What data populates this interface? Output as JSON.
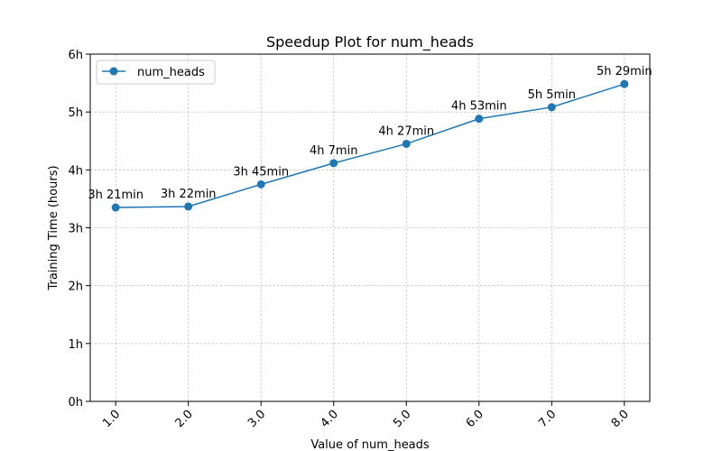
{
  "chart_data": {
    "type": "line",
    "title": "Speedup Plot for num_heads",
    "xlabel": "Value of num_heads",
    "ylabel": "Training Time (hours)",
    "x": [
      1.0,
      2.0,
      3.0,
      4.0,
      5.0,
      6.0,
      7.0,
      8.0
    ],
    "x_tick_labels": [
      "1.0",
      "2.0",
      "3.0",
      "4.0",
      "5.0",
      "6.0",
      "7.0",
      "8.0"
    ],
    "y_ticks": [
      0,
      1,
      2,
      3,
      4,
      5,
      6
    ],
    "y_tick_labels": [
      "0h",
      "1h",
      "2h",
      "3h",
      "4h",
      "5h",
      "6h"
    ],
    "ylim": [
      0,
      6
    ],
    "xlim": [
      0.65,
      8.35
    ],
    "grid": true,
    "legend": {
      "placement": "top-left",
      "entries": [
        "num_heads"
      ]
    },
    "series": [
      {
        "name": "num_heads",
        "color": "#1f77b4",
        "marker": "circle",
        "values": [
          3.35,
          3.3667,
          3.75,
          4.1167,
          4.45,
          4.8833,
          5.0833,
          5.4833
        ],
        "labels": [
          "3h 21min",
          "3h 22min",
          "3h 45min",
          "4h 7min",
          "4h 27min",
          "4h 53min",
          "5h 5min",
          "5h 29min"
        ]
      }
    ]
  }
}
